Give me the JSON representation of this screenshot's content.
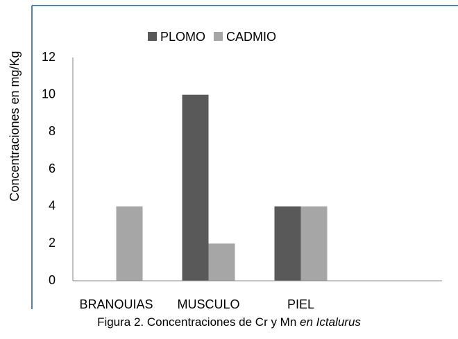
{
  "chart_data": {
    "type": "bar",
    "y_axis_label": "Concentraciones en mg/Kg",
    "categories": [
      "BRANQUIAS",
      "MUSCULO",
      "PIEL",
      null
    ],
    "series": [
      {
        "name": "PLOMO",
        "color": "#595959",
        "values": [
          0,
          10,
          4,
          null
        ]
      },
      {
        "name": "CADMIO",
        "color": "#a6a6a6",
        "values": [
          4,
          2,
          4,
          null
        ]
      }
    ],
    "ylim": [
      0,
      12
    ],
    "yticks": [
      0,
      2,
      4,
      6,
      8,
      10,
      12
    ],
    "grid": false,
    "legend": "top"
  },
  "caption": "Figura 2. Concentraciones de Cr y Mn",
  "caption_italic": "en Ictalurus"
}
